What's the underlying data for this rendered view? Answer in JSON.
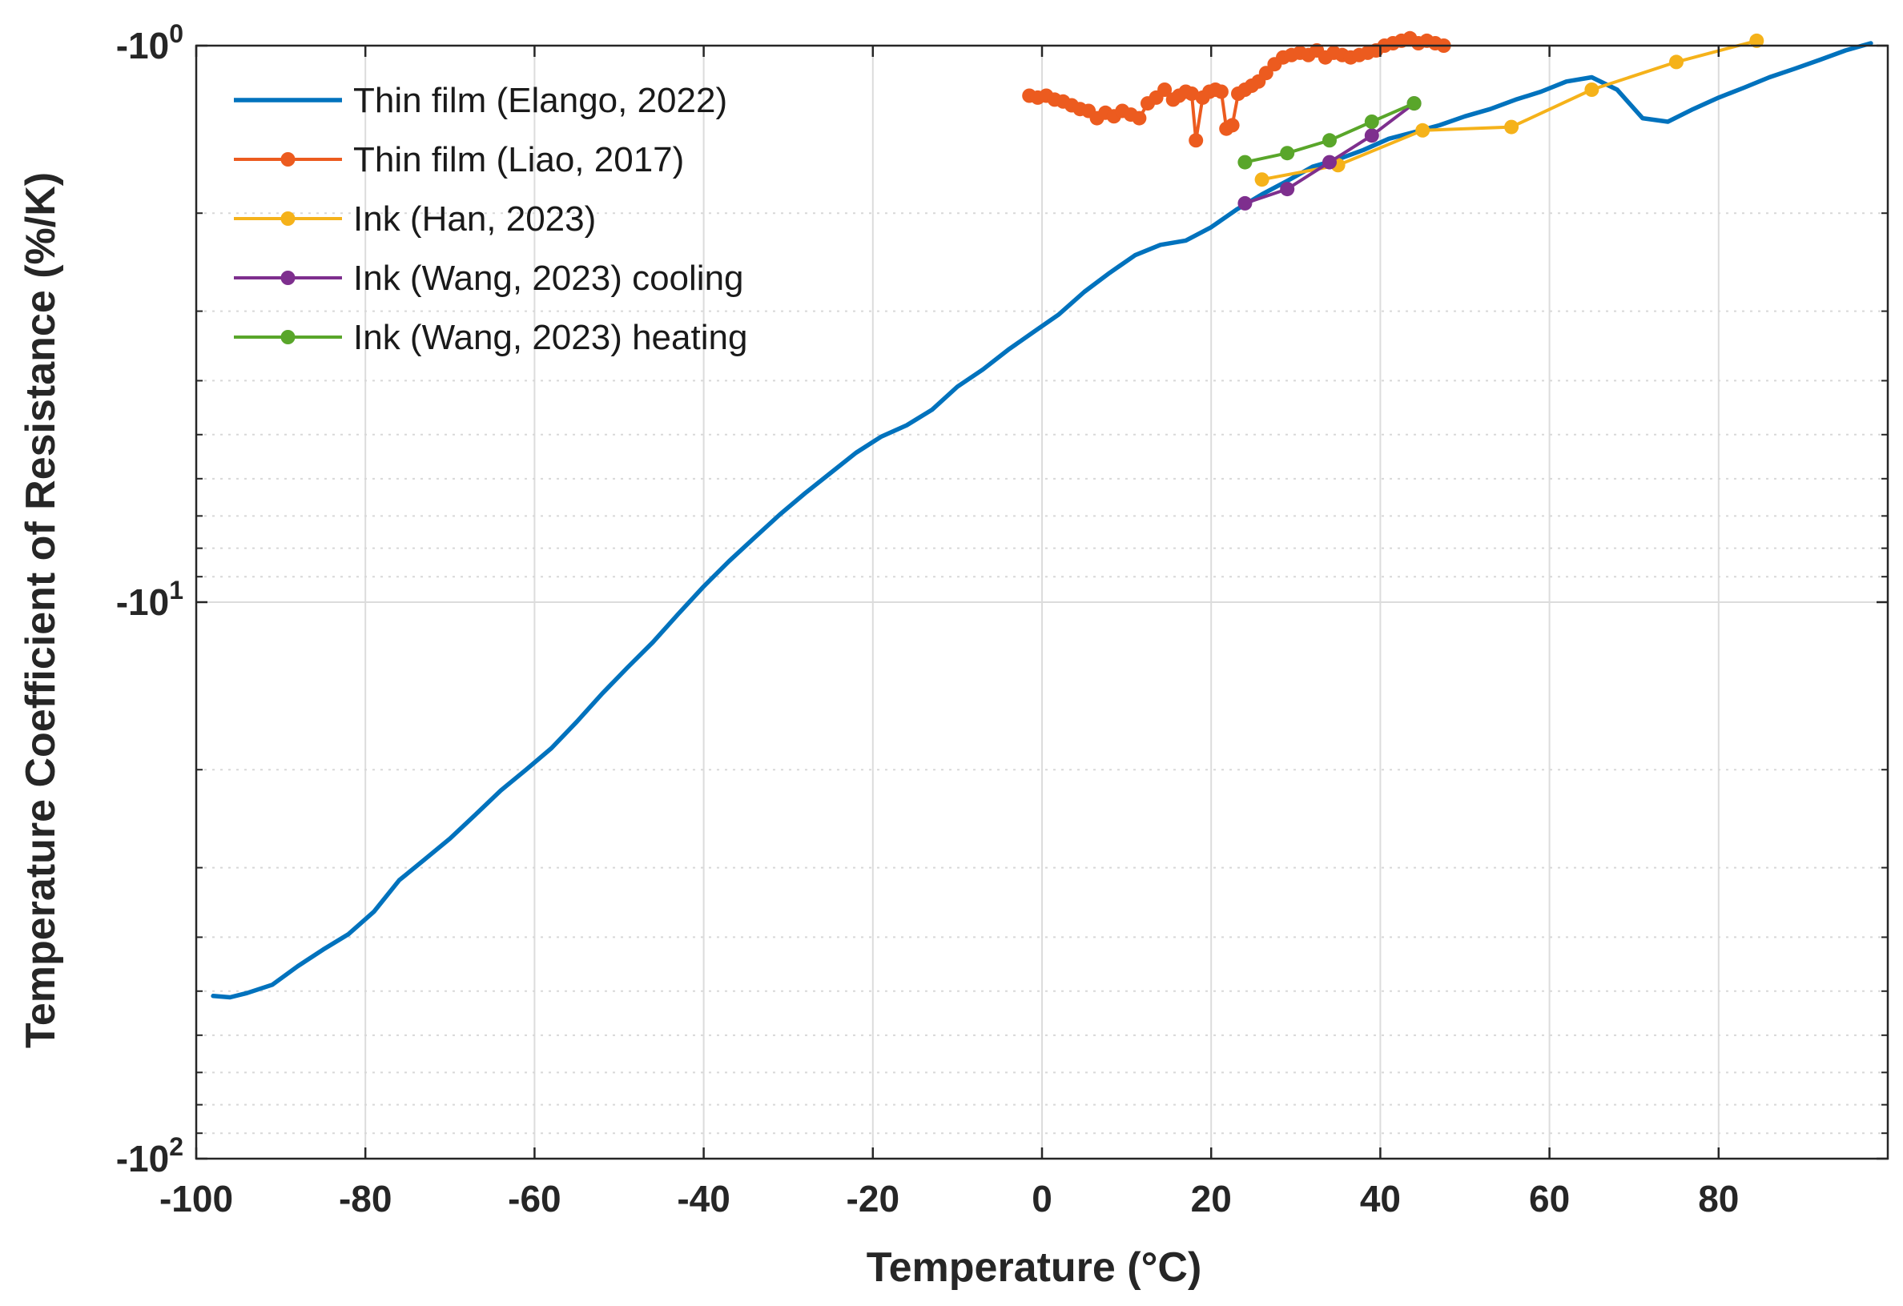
{
  "chart_data": {
    "type": "line",
    "title": "",
    "xlabel": "Temperature (°C)",
    "ylabel": "Temperature Coefficient of Resistance (%/K)",
    "xlim": [
      -100,
      100
    ],
    "ylim": [
      -100,
      -1
    ],
    "yscale": "log (negative values)",
    "grid": true,
    "legend_position": "top-left",
    "x_ticks": [
      {
        "value": -100,
        "label": "-100"
      },
      {
        "value": -80,
        "label": "-80"
      },
      {
        "value": -60,
        "label": "-60"
      },
      {
        "value": -40,
        "label": "-40"
      },
      {
        "value": -20,
        "label": "-20"
      },
      {
        "value": 0,
        "label": "0"
      },
      {
        "value": 20,
        "label": "20"
      },
      {
        "value": 40,
        "label": "40"
      },
      {
        "value": 60,
        "label": "60"
      },
      {
        "value": 80,
        "label": "80"
      }
    ],
    "y_ticks": [
      {
        "value": -1,
        "base": "-10",
        "exp": "0"
      },
      {
        "value": -10,
        "base": "-10",
        "exp": "1"
      },
      {
        "value": -100,
        "base": "-10",
        "exp": "2"
      }
    ],
    "series": [
      {
        "name": "Thin film (Elango, 2022)",
        "color": "#0072BD",
        "markers": false,
        "x": [
          -98,
          -96,
          -94,
          -91,
          -88,
          -85,
          -82,
          -79,
          -76,
          -73,
          -70,
          -67,
          -64,
          -61,
          -58,
          -55,
          -52,
          -49,
          -46,
          -43,
          -40,
          -37,
          -34,
          -31,
          -28,
          -25,
          -22,
          -19,
          -16,
          -13,
          -10,
          -7,
          -4,
          -1,
          2,
          5,
          8,
          11,
          14,
          17,
          20,
          23,
          26,
          29,
          32,
          35,
          38,
          41,
          44,
          47,
          50,
          53,
          56,
          59,
          62,
          65,
          68,
          71,
          74,
          77,
          80,
          83,
          86,
          89,
          92,
          95,
          98
        ],
        "values": [
          -51,
          -51.3,
          -50.4,
          -48.7,
          -45.1,
          -42.1,
          -39.5,
          -36,
          -31.6,
          -29,
          -26.6,
          -24.1,
          -21.8,
          -20,
          -18.3,
          -16.4,
          -14.6,
          -13.1,
          -11.8,
          -10.5,
          -9.37,
          -8.44,
          -7.66,
          -6.96,
          -6.37,
          -5.86,
          -5.39,
          -5.04,
          -4.81,
          -4.51,
          -4.1,
          -3.82,
          -3.52,
          -3.27,
          -3.04,
          -2.77,
          -2.56,
          -2.38,
          -2.28,
          -2.24,
          -2.12,
          -1.97,
          -1.85,
          -1.75,
          -1.65,
          -1.6,
          -1.54,
          -1.47,
          -1.43,
          -1.39,
          -1.34,
          -1.3,
          -1.25,
          -1.21,
          -1.16,
          -1.14,
          -1.2,
          -1.35,
          -1.37,
          -1.3,
          -1.24,
          -1.19,
          -1.14,
          -1.1,
          -1.06,
          -1.02,
          -0.99
        ]
      },
      {
        "name": "Thin film (Liao, 2017)",
        "color": "#EC5B1F",
        "markers": true,
        "x": [
          -1.5,
          -0.5,
          0.5,
          1.5,
          2.5,
          3.5,
          4.5,
          5.5,
          6.5,
          7.5,
          8.5,
          9.5,
          10.5,
          11.5,
          12.5,
          13.5,
          14.5,
          15.5,
          16.2,
          17,
          17.7,
          18.2,
          19,
          19.8,
          20.5,
          21.2,
          21.8,
          22.5,
          23.2,
          24,
          24.8,
          25.6,
          26.5,
          27.5,
          28.5,
          29.5,
          30.5,
          31.5,
          32.5,
          33.5,
          34.5,
          35.5,
          36.5,
          37.5,
          38.5,
          39.5,
          40.5,
          41.5,
          42.5,
          43.5,
          44.5,
          45.5,
          46.5,
          47.5
        ],
        "values": [
          -1.23,
          -1.24,
          -1.23,
          -1.25,
          -1.26,
          -1.28,
          -1.3,
          -1.31,
          -1.35,
          -1.32,
          -1.34,
          -1.31,
          -1.33,
          -1.35,
          -1.27,
          -1.24,
          -1.2,
          -1.25,
          -1.23,
          -1.21,
          -1.22,
          -1.48,
          -1.24,
          -1.21,
          -1.2,
          -1.21,
          -1.41,
          -1.39,
          -1.22,
          -1.2,
          -1.18,
          -1.16,
          -1.12,
          -1.08,
          -1.05,
          -1.04,
          -1.03,
          -1.04,
          -1.02,
          -1.05,
          -1.03,
          -1.04,
          -1.05,
          -1.04,
          -1.03,
          -1.02,
          -1,
          -0.99,
          -0.98,
          -0.97,
          -0.99,
          -0.98,
          -0.99,
          -1
        ]
      },
      {
        "name": "Ink (Han, 2023)",
        "color": "#F5B21A",
        "markers": true,
        "x": [
          26,
          35,
          45,
          55.5,
          65,
          75,
          84.5
        ],
        "values": [
          -1.74,
          -1.64,
          -1.42,
          -1.4,
          -1.2,
          -1.07,
          -0.98
        ]
      },
      {
        "name": "Ink (Wang, 2023) cooling",
        "color": "#7E2F8E",
        "markers": true,
        "x": [
          24,
          29,
          34,
          39,
          44
        ],
        "values": [
          -1.92,
          -1.81,
          -1.62,
          -1.45,
          -1.27
        ]
      },
      {
        "name": "Ink (Wang, 2023) heating",
        "color": "#59A62A",
        "markers": true,
        "x": [
          24,
          29,
          34,
          39,
          44
        ],
        "values": [
          -1.62,
          -1.56,
          -1.48,
          -1.37,
          -1.27
        ]
      }
    ]
  }
}
